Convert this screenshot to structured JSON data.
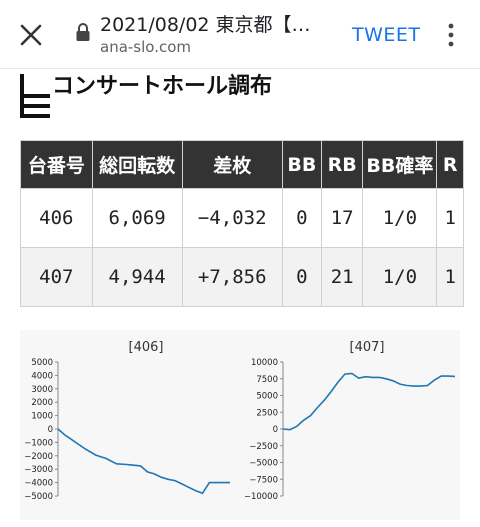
{
  "browser": {
    "title": "2021/08/02 東京都【…",
    "url": "ana-slo.com",
    "tweet_label": "TWEET",
    "icons": {
      "close": "close-icon",
      "lock": "lock-icon",
      "more": "more-vert-icon"
    }
  },
  "hall": {
    "name": "コンサートホール調布"
  },
  "table": {
    "headers": [
      "台番号",
      "総回転数",
      "差枚",
      "BB",
      "RB",
      "BB確率",
      "R"
    ],
    "rows": [
      [
        "406",
        "6,069",
        "−4,032",
        "0",
        "17",
        "1/0",
        "1"
      ],
      [
        "407",
        "4,944",
        "+7,856",
        "0",
        "21",
        "1/0",
        "1"
      ]
    ]
  },
  "chart_data": [
    {
      "type": "line",
      "title": "[406]",
      "ylim": [
        -5000,
        5000
      ],
      "yticks": [
        5000,
        4000,
        3000,
        2000,
        1000,
        0,
        -1000,
        -2000,
        -3000,
        -4000,
        -5000
      ],
      "color": "#1f77b4",
      "x": [
        0,
        4,
        8,
        12,
        16,
        22,
        28,
        34,
        40,
        44,
        48,
        52,
        56,
        60,
        64,
        68,
        72,
        76,
        80,
        84,
        88,
        92,
        96,
        100
      ],
      "y": [
        0,
        -450,
        -800,
        -1150,
        -1500,
        -1950,
        -2200,
        -2600,
        -2650,
        -2700,
        -2750,
        -3200,
        -3350,
        -3600,
        -3750,
        -3850,
        -4100,
        -4350,
        -4600,
        -4800,
        -4000,
        -4000,
        -4000,
        -4000
      ]
    },
    {
      "type": "line",
      "title": "[407]",
      "ylim": [
        -10000,
        10000
      ],
      "yticks": [
        10000,
        7500,
        5000,
        2500,
        0,
        -2500,
        -5000,
        -7500,
        -10000
      ],
      "color": "#1f77b4",
      "x": [
        0,
        4,
        8,
        12,
        16,
        20,
        24,
        28,
        32,
        36,
        40,
        44,
        48,
        52,
        56,
        60,
        64,
        68,
        72,
        76,
        80,
        84,
        88,
        92,
        96,
        100
      ],
      "y": [
        0,
        -100,
        400,
        1300,
        2000,
        3200,
        4300,
        5600,
        7000,
        8200,
        8300,
        7600,
        7800,
        7700,
        7700,
        7500,
        7200,
        6700,
        6500,
        6400,
        6400,
        6500,
        7300,
        7900,
        7900,
        7850
      ]
    }
  ]
}
